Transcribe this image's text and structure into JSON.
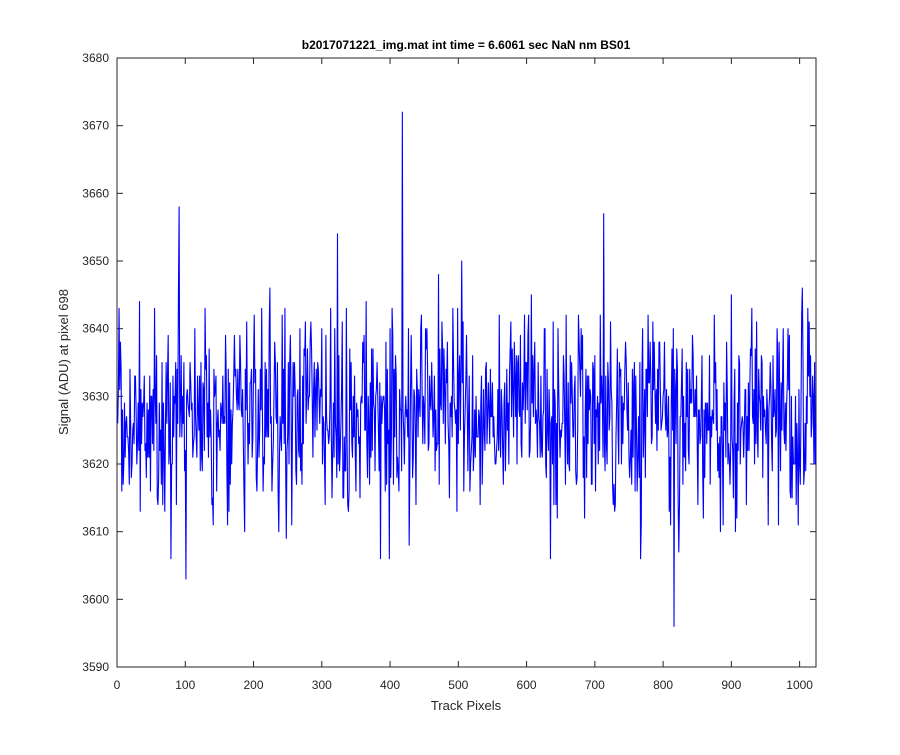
{
  "chart_data": {
    "type": "line",
    "title": "b2017071221_img.mat int time = 6.6061 sec  NaN nm BS01",
    "xlabel": "Track Pixels",
    "ylabel": "Signal (ADU) at pixel 698",
    "xlim": [
      0,
      1024
    ],
    "ylim": [
      3590,
      3680
    ],
    "xticks": [
      0,
      100,
      200,
      300,
      400,
      500,
      600,
      700,
      800,
      900,
      1000
    ],
    "yticks": [
      3590,
      3600,
      3610,
      3620,
      3630,
      3640,
      3650,
      3660,
      3670,
      3680
    ],
    "grid": false,
    "legend": "none",
    "series_color": "#0000ff",
    "x_step": 1,
    "x_start": 1,
    "n_points": 1024,
    "mean_level": 3628,
    "noise_std": 7.3,
    "noise_seed": 2017,
    "spikes": [
      {
        "x": 91,
        "y": 3658
      },
      {
        "x": 101,
        "y": 3603
      },
      {
        "x": 79,
        "y": 3606
      },
      {
        "x": 323,
        "y": 3654
      },
      {
        "x": 386,
        "y": 3606
      },
      {
        "x": 418,
        "y": 3672
      },
      {
        "x": 428,
        "y": 3608
      },
      {
        "x": 505,
        "y": 3650
      },
      {
        "x": 635,
        "y": 3606
      },
      {
        "x": 713,
        "y": 3657
      },
      {
        "x": 767,
        "y": 3606
      },
      {
        "x": 816,
        "y": 3596
      },
      {
        "x": 1004,
        "y": 3646
      }
    ]
  }
}
